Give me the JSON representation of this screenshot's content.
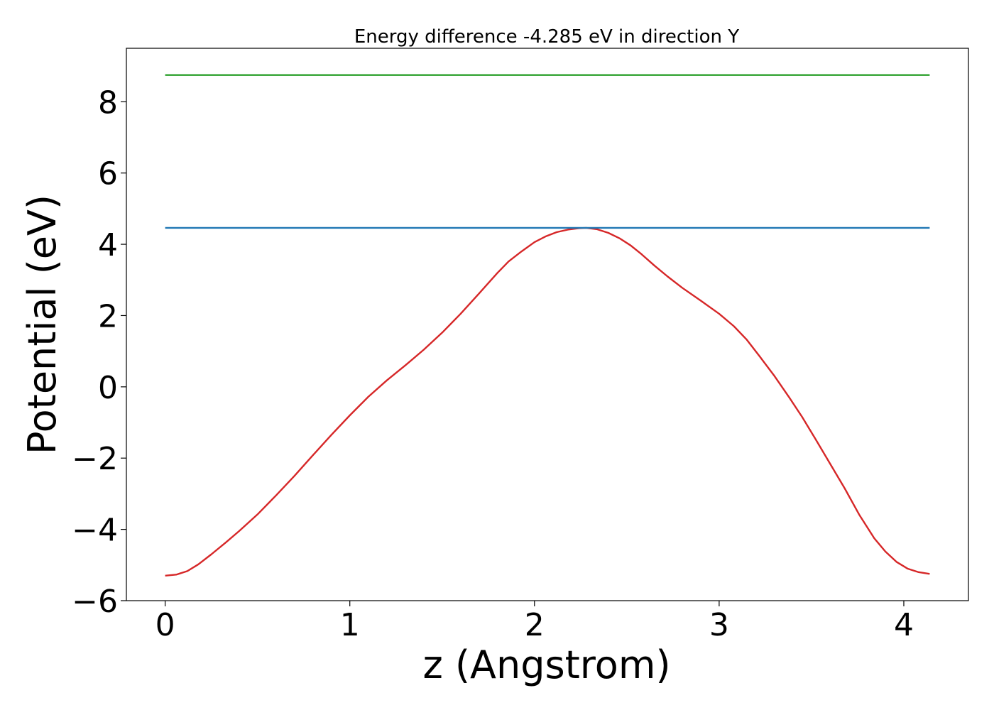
{
  "chart_data": {
    "type": "line",
    "title": "Energy difference -4.285 eV in direction Y",
    "xlabel": "z (Angstrom)",
    "ylabel": "Potential (eV)",
    "xlim": [
      -0.21,
      4.35
    ],
    "ylim": [
      -6,
      9.5
    ],
    "x_ticks": [
      0,
      1,
      2,
      3,
      4
    ],
    "x_tick_labels": [
      "0",
      "1",
      "2",
      "3",
      "4"
    ],
    "y_ticks": [
      -6,
      -4,
      -2,
      0,
      2,
      4,
      6,
      8
    ],
    "y_tick_labels": [
      "−6",
      "−4",
      "−2",
      "0",
      "2",
      "4",
      "6",
      "8"
    ],
    "grid": false,
    "legend": "none",
    "series": [
      {
        "color": "#d62728",
        "x": [
          0,
          0.06,
          0.12,
          0.18,
          0.25,
          0.33,
          0.4,
          0.5,
          0.6,
          0.7,
          0.8,
          0.9,
          1.0,
          1.1,
          1.2,
          1.3,
          1.4,
          1.5,
          1.6,
          1.7,
          1.8,
          1.86,
          1.93,
          2.0,
          2.06,
          2.12,
          2.18,
          2.24,
          2.28,
          2.34,
          2.4,
          2.46,
          2.52,
          2.58,
          2.65,
          2.72,
          2.8,
          2.9,
          3.0,
          3.08,
          3.15,
          3.22,
          3.3,
          3.38,
          3.45,
          3.52,
          3.6,
          3.68,
          3.76,
          3.84,
          3.9,
          3.96,
          4.02,
          4.08,
          4.14
        ],
        "y": [
          -5.3,
          -5.27,
          -5.17,
          -4.98,
          -4.7,
          -4.36,
          -4.05,
          -3.58,
          -3.05,
          -2.5,
          -1.92,
          -1.35,
          -0.8,
          -0.28,
          0.18,
          0.6,
          1.04,
          1.52,
          2.05,
          2.62,
          3.2,
          3.52,
          3.8,
          4.06,
          4.22,
          4.34,
          4.41,
          4.45,
          4.46,
          4.42,
          4.32,
          4.17,
          3.97,
          3.72,
          3.4,
          3.1,
          2.78,
          2.42,
          2.05,
          1.7,
          1.32,
          0.85,
          0.3,
          -0.3,
          -0.85,
          -1.45,
          -2.15,
          -2.85,
          -3.6,
          -4.25,
          -4.62,
          -4.91,
          -5.1,
          -5.2,
          -5.25
        ]
      },
      {
        "color": "#1f77b4",
        "x": [
          0,
          4.14
        ],
        "y": [
          4.46,
          4.46
        ]
      },
      {
        "color": "#2ca02c",
        "x": [
          0,
          4.14
        ],
        "y": [
          8.75,
          8.75
        ]
      }
    ]
  }
}
